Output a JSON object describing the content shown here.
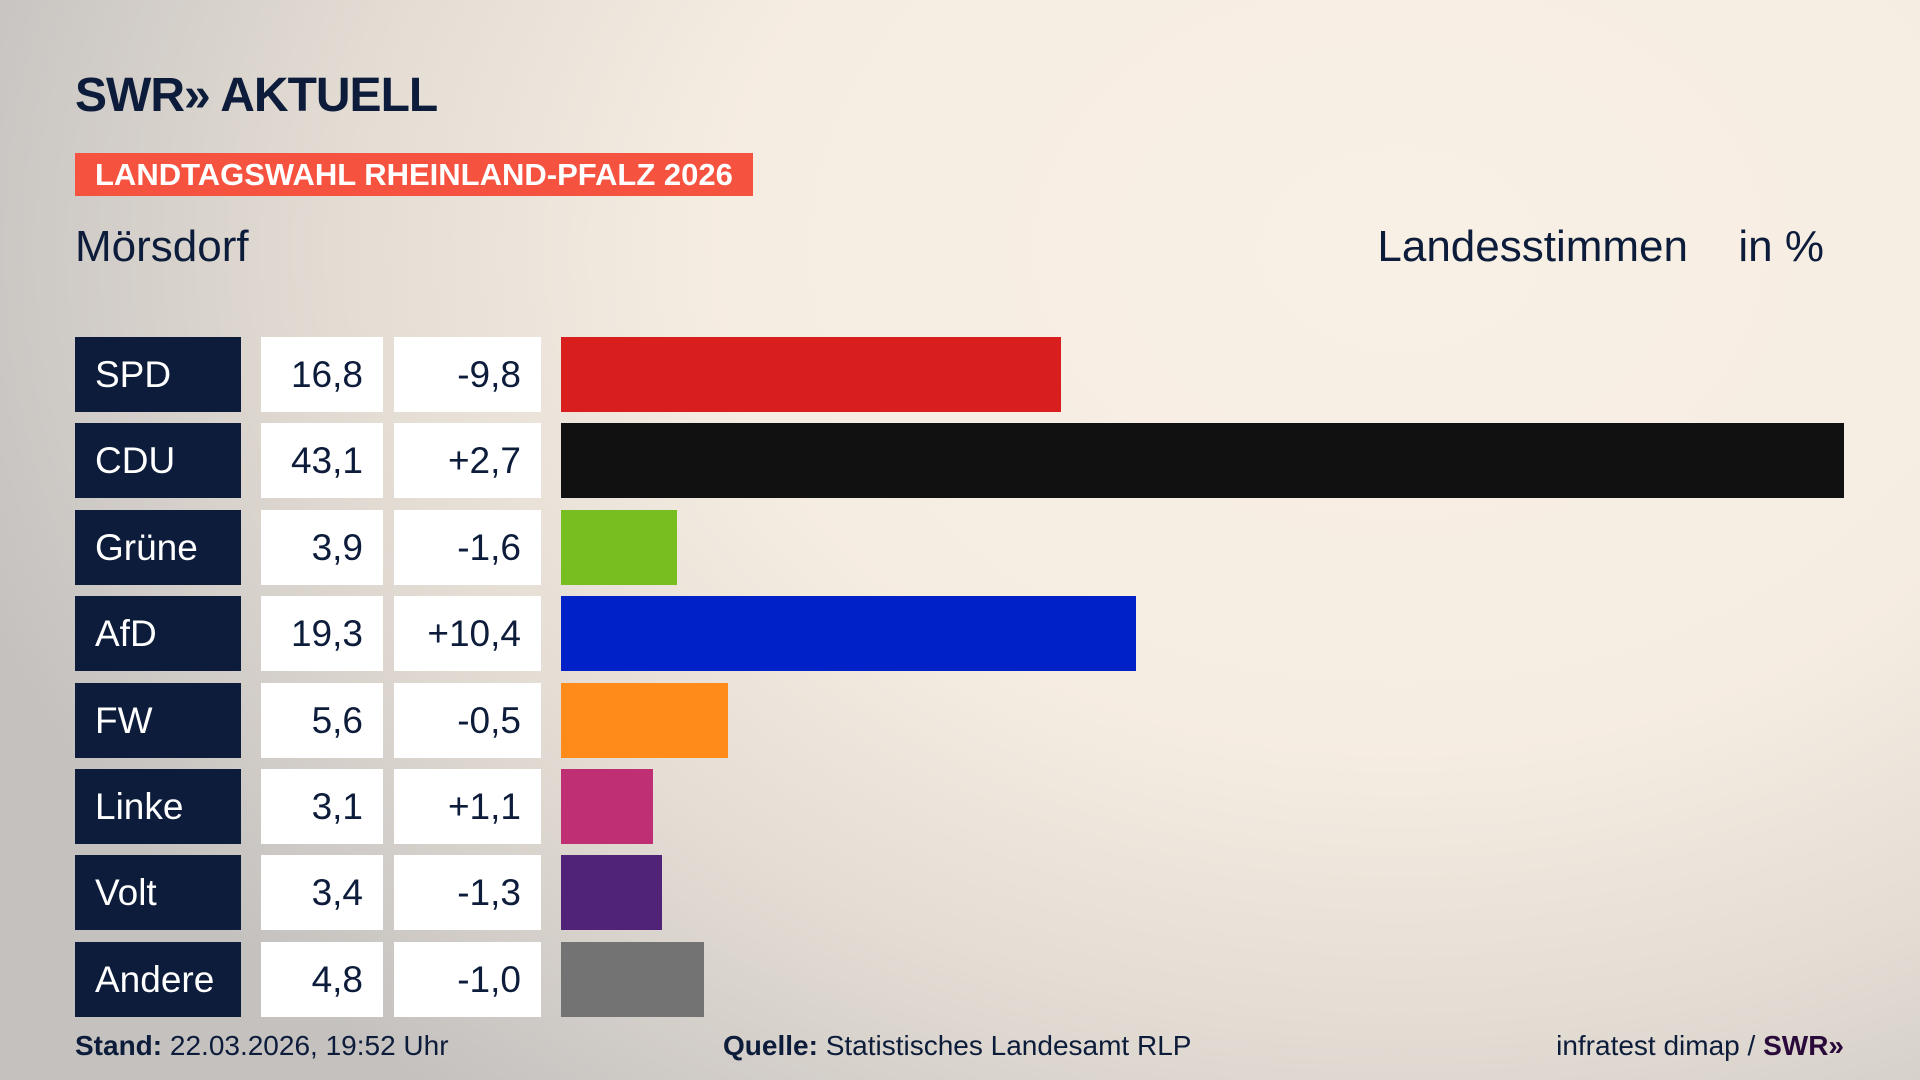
{
  "header": {
    "logo": "SWR» AKTUELL",
    "banner": "LANDTAGSWAHL RHEINLAND-PFALZ 2026",
    "place": "Mörsdorf",
    "mode": "Landesstimmen",
    "unit": "in %"
  },
  "chart_data": {
    "type": "bar",
    "title": "Landesstimmen",
    "unit": "in %",
    "categories": [
      "SPD",
      "CDU",
      "Grüne",
      "AfD",
      "FW",
      "Linke",
      "Volt",
      "Andere"
    ],
    "values": [
      16.8,
      43.1,
      3.9,
      19.3,
      5.6,
      3.1,
      3.4,
      4.8
    ],
    "values_label": [
      "16,8",
      "43,1",
      "3,9",
      "19,3",
      "5,6",
      "3,1",
      "3,4",
      "4,8"
    ],
    "diff_label": [
      "-9,8",
      "+2,7",
      "-1,6",
      "+10,4",
      "-0,5",
      "+1,1",
      "-1,3",
      "-1,0"
    ],
    "diff": [
      -9.8,
      2.7,
      -1.6,
      10.4,
      -0.5,
      1.1,
      -1.3,
      -1.0
    ],
    "colors": [
      "#d91e1e",
      "#111111",
      "#78be20",
      "#0021c8",
      "#ff8c1a",
      "#bf2f74",
      "#502379",
      "#737373"
    ]
  },
  "footer": {
    "stand_label": "Stand:",
    "stand": "22.03.2026, 19:52 Uhr",
    "source_label": "Quelle:",
    "source": "Statistisches Landesamt RLP",
    "credit": "infratest dimap /",
    "credit_logo": "SWR»"
  }
}
